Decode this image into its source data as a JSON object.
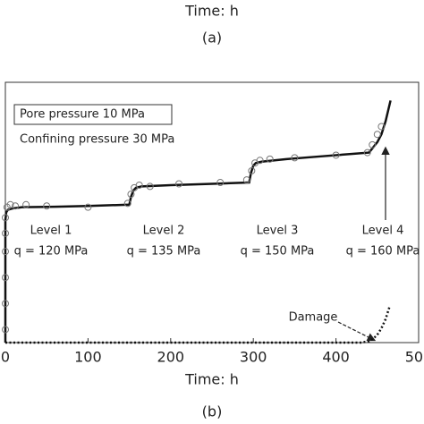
{
  "chart_data": {
    "type": "line",
    "top_labels": [
      "Time: h",
      "(a)"
    ],
    "xlabel": "Time: h",
    "panel_label": "(b)",
    "xlim": [
      0,
      500
    ],
    "ylim": [
      0,
      10
    ],
    "xticks": [
      0,
      100,
      200,
      300,
      400,
      500
    ],
    "series": [
      {
        "color": "#111111",
        "marker": "none",
        "dashed": false,
        "x": [
          0,
          0,
          1,
          3,
          8,
          20,
          60,
          100,
          150,
          152,
          155,
          158,
          165,
          200,
          250,
          295,
          297,
          300,
          303,
          310,
          340,
          380,
          420,
          440,
          445,
          450,
          455,
          460,
          463,
          466
        ],
        "values": [
          0,
          4.7,
          5.0,
          5.1,
          5.15,
          5.2,
          5.22,
          5.25,
          5.3,
          5.6,
          5.85,
          5.95,
          6.0,
          6.05,
          6.1,
          6.15,
          6.5,
          6.8,
          6.9,
          6.95,
          7.05,
          7.15,
          7.25,
          7.3,
          7.5,
          7.7,
          8.0,
          8.5,
          8.9,
          9.3
        ]
      },
      {
        "color": "#777777",
        "marker": "circle",
        "dashed": false,
        "x": [
          0,
          0,
          0,
          0,
          0,
          0,
          2,
          6,
          12,
          25,
          50,
          100,
          148,
          152,
          156,
          162,
          175,
          210,
          260,
          292,
          298,
          302,
          308,
          320,
          350,
          400,
          438,
          444,
          450,
          455
        ],
        "values": [
          0.5,
          1.5,
          2.5,
          3.5,
          4.2,
          4.8,
          5.2,
          5.3,
          5.25,
          5.3,
          5.25,
          5.2,
          5.35,
          5.7,
          5.95,
          6.05,
          6.0,
          6.1,
          6.15,
          6.25,
          6.6,
          6.9,
          7.0,
          7.05,
          7.1,
          7.2,
          7.3,
          7.6,
          8.0,
          8.3
        ]
      },
      {
        "color": "#111111",
        "marker": "none",
        "dashed": true,
        "x": [
          0,
          430,
          440,
          445,
          450,
          455,
          460,
          465
        ],
        "values": [
          0,
          0,
          0.05,
          0.15,
          0.3,
          0.55,
          0.9,
          1.4
        ]
      }
    ],
    "annotations": {
      "pore": "Pore pressure 10 MPa",
      "confining": "Confining pressure 30 MPa",
      "levels": [
        {
          "name": "Level 1",
          "q": "q = 120 MPa"
        },
        {
          "name": "Level 2",
          "q": "q = 135 MPa"
        },
        {
          "name": "Level 3",
          "q": "q = 150 MPa"
        },
        {
          "name": "Level 4",
          "q": "q = 160 MPa"
        }
      ],
      "damage": "Damage"
    }
  }
}
